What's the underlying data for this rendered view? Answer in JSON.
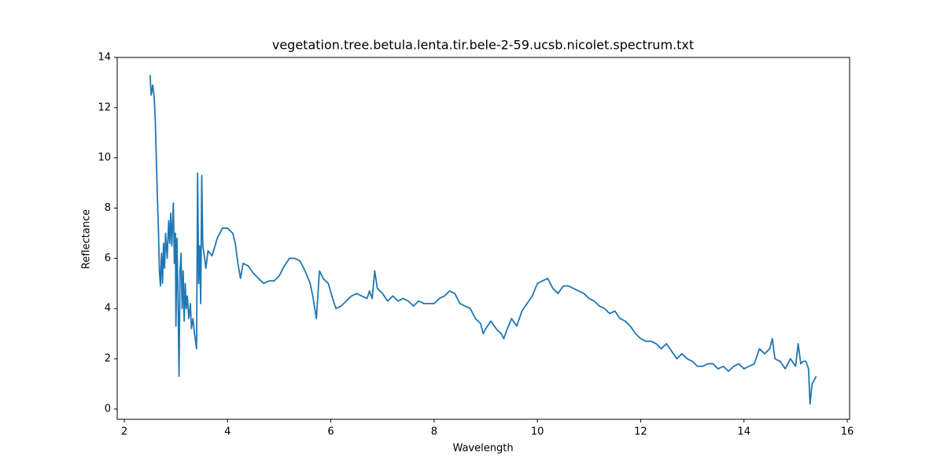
{
  "chart_data": {
    "type": "line",
    "title": "vegetation.tree.betula.lenta.tir.bele-2-59.ucsb.nicolet.spectrum.txt",
    "x_label": "Wavelength",
    "y_label": "Reflectance",
    "xlim": [
      1.863,
      16.046
    ],
    "ylim": [
      -0.41,
      14.0
    ],
    "xticks": [
      2,
      4,
      6,
      8,
      10,
      12,
      14,
      16
    ],
    "yticks": [
      0,
      2,
      4,
      6,
      8,
      10,
      12,
      14
    ],
    "color": "#1f77b4",
    "x": [
      2.5,
      2.52,
      2.55,
      2.58,
      2.6,
      2.62,
      2.64,
      2.66,
      2.68,
      2.7,
      2.72,
      2.74,
      2.76,
      2.78,
      2.8,
      2.83,
      2.86,
      2.88,
      2.9,
      2.92,
      2.95,
      2.97,
      2.99,
      3.0,
      3.02,
      3.04,
      3.06,
      3.08,
      3.1,
      3.12,
      3.14,
      3.16,
      3.18,
      3.2,
      3.22,
      3.25,
      3.28,
      3.3,
      3.33,
      3.36,
      3.4,
      3.42,
      3.44,
      3.46,
      3.48,
      3.5,
      3.52,
      3.55,
      3.58,
      3.62,
      3.7,
      3.8,
      3.9,
      4.0,
      4.1,
      4.15,
      4.2,
      4.25,
      4.3,
      4.4,
      4.5,
      4.6,
      4.7,
      4.8,
      4.9,
      5.0,
      5.1,
      5.2,
      5.3,
      5.4,
      5.5,
      5.6,
      5.65,
      5.72,
      5.78,
      5.85,
      5.95,
      6.05,
      6.1,
      6.2,
      6.3,
      6.4,
      6.5,
      6.6,
      6.7,
      6.75,
      6.8,
      6.85,
      6.9,
      7.0,
      7.1,
      7.2,
      7.3,
      7.4,
      7.5,
      7.6,
      7.7,
      7.8,
      7.9,
      8.0,
      8.1,
      8.2,
      8.3,
      8.4,
      8.5,
      8.6,
      8.7,
      8.8,
      8.9,
      8.95,
      9.0,
      9.1,
      9.2,
      9.3,
      9.35,
      9.4,
      9.5,
      9.6,
      9.7,
      9.8,
      9.9,
      10.0,
      10.1,
      10.2,
      10.3,
      10.4,
      10.5,
      10.6,
      10.7,
      10.8,
      10.9,
      11.0,
      11.1,
      11.2,
      11.3,
      11.4,
      11.5,
      11.6,
      11.7,
      11.8,
      11.9,
      12.0,
      12.1,
      12.2,
      12.3,
      12.4,
      12.5,
      12.6,
      12.7,
      12.8,
      12.9,
      13.0,
      13.1,
      13.2,
      13.3,
      13.4,
      13.5,
      13.6,
      13.7,
      13.8,
      13.9,
      14.0,
      14.1,
      14.2,
      14.3,
      14.4,
      14.5,
      14.55,
      14.6,
      14.7,
      14.8,
      14.9,
      15.0,
      15.05,
      15.1,
      15.15,
      15.2,
      15.25,
      15.28,
      15.32,
      15.4
    ],
    "values": [
      13.3,
      12.5,
      12.9,
      12.4,
      11.5,
      10.0,
      8.5,
      7.2,
      5.5,
      4.9,
      6.2,
      5.0,
      6.6,
      5.6,
      7.0,
      6.0,
      7.5,
      6.6,
      7.8,
      6.5,
      8.2,
      5.8,
      7.0,
      3.3,
      6.8,
      4.5,
      1.3,
      5.5,
      6.2,
      4.0,
      5.5,
      3.5,
      5.0,
      4.0,
      4.5,
      3.6,
      4.2,
      3.2,
      3.6,
      3.0,
      2.4,
      9.4,
      5.0,
      6.5,
      4.2,
      9.3,
      6.5,
      6.1,
      5.6,
      6.3,
      6.1,
      6.8,
      7.2,
      7.2,
      7.0,
      6.6,
      5.8,
      5.2,
      5.8,
      5.7,
      5.4,
      5.2,
      5.0,
      5.1,
      5.1,
      5.3,
      5.7,
      6.0,
      6.0,
      5.9,
      5.5,
      5.0,
      4.5,
      3.6,
      5.5,
      5.2,
      5.0,
      4.3,
      4.0,
      4.1,
      4.3,
      4.5,
      4.6,
      4.5,
      4.4,
      4.7,
      4.4,
      5.5,
      4.8,
      4.6,
      4.3,
      4.5,
      4.3,
      4.4,
      4.3,
      4.1,
      4.3,
      4.2,
      4.2,
      4.2,
      4.4,
      4.5,
      4.7,
      4.6,
      4.2,
      4.1,
      4.0,
      3.6,
      3.4,
      3.0,
      3.2,
      3.5,
      3.2,
      3.0,
      2.8,
      3.1,
      3.6,
      3.3,
      3.9,
      4.2,
      4.5,
      5.0,
      5.1,
      5.2,
      4.8,
      4.6,
      4.9,
      4.9,
      4.8,
      4.7,
      4.6,
      4.4,
      4.3,
      4.1,
      4.0,
      3.8,
      3.9,
      3.6,
      3.5,
      3.3,
      3.0,
      2.8,
      2.7,
      2.7,
      2.6,
      2.4,
      2.6,
      2.3,
      2.0,
      2.2,
      2.0,
      1.9,
      1.7,
      1.7,
      1.8,
      1.8,
      1.6,
      1.7,
      1.5,
      1.7,
      1.8,
      1.6,
      1.7,
      1.8,
      2.4,
      2.2,
      2.4,
      2.8,
      2.0,
      1.9,
      1.6,
      2.0,
      1.7,
      2.6,
      1.8,
      1.9,
      1.9,
      1.6,
      0.2,
      1.0,
      1.3
    ]
  }
}
